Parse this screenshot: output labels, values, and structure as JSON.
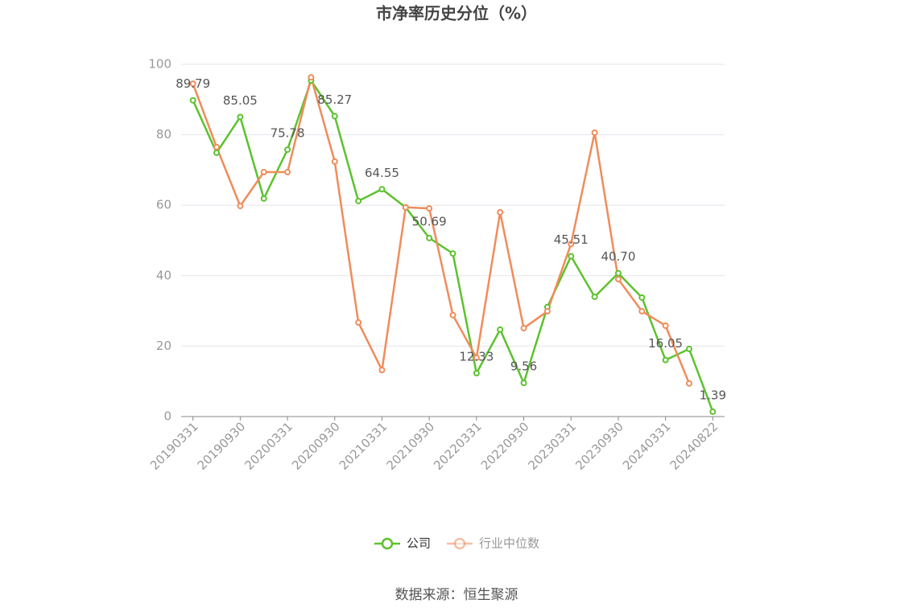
{
  "chart_data": {
    "type": "line",
    "title": "市净率历史分位（%）",
    "categories": [
      "20190331",
      null,
      "20190930",
      null,
      "20200331",
      null,
      "20200930",
      null,
      "20210331",
      null,
      "20210930",
      null,
      "20220331",
      null,
      "20220930",
      null,
      "20230331",
      null,
      "20230930",
      null,
      "20240331",
      null,
      "20240822"
    ],
    "series": [
      {
        "name": "公司",
        "color": "#5cc22e",
        "values": [
          89.79,
          74.9,
          85.05,
          61.9,
          75.78,
          95.4,
          85.27,
          61.2,
          64.55,
          59.4,
          50.69,
          46.3,
          12.33,
          24.7,
          9.56,
          31.1,
          45.51,
          34.0,
          40.7,
          33.8,
          16.05,
          19.2,
          1.39
        ],
        "value_labels": [
          "89.79",
          null,
          "85.05",
          null,
          "75.78",
          null,
          "85.27",
          null,
          "64.55",
          null,
          "50.69",
          null,
          "12.33",
          null,
          "9.56",
          null,
          "45.51",
          null,
          "40.70",
          null,
          "16.05",
          null,
          "1.39"
        ]
      },
      {
        "name": "行业中位数",
        "color": "#f08c5a",
        "values": [
          94.5,
          76.5,
          59.8,
          69.4,
          69.4,
          96.3,
          72.4,
          26.7,
          13.2,
          59.4,
          59.1,
          28.8,
          16.7,
          58.0,
          25.1,
          29.9,
          49.0,
          80.6,
          39.0,
          29.9,
          25.8,
          9.4,
          null
        ]
      }
    ],
    "ylim": [
      0,
      100
    ],
    "yticks": [
      0,
      20,
      40,
      60,
      80,
      100
    ],
    "grid": true,
    "source": "数据来源：恒生聚源"
  }
}
